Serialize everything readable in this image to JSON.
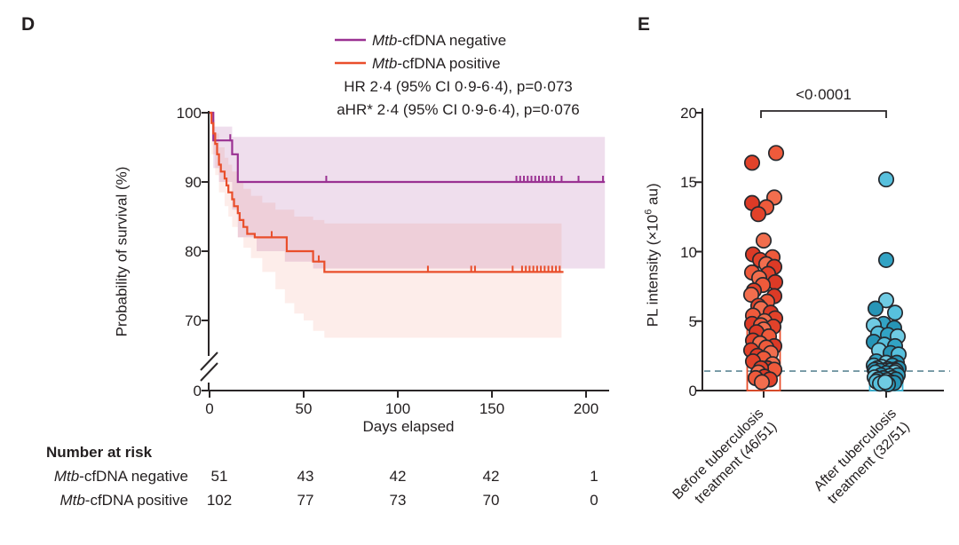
{
  "figure": {
    "panel_d_label": "D",
    "panel_e_label": "E"
  },
  "chart_data": [
    {
      "type": "line",
      "subtype": "kaplan_meier_survival",
      "panel": "D",
      "xlabel": "Days elapsed",
      "ylabel": "Probability of survival (%)",
      "xticks": [
        "0",
        "50",
        "100",
        "150",
        "200"
      ],
      "yticks": [
        "100",
        "90",
        "80",
        "70"
      ],
      "y_axis_break_label": "0",
      "xlim": [
        0,
        210
      ],
      "ylim_display": [
        65,
        100
      ],
      "grid": false,
      "legend_position": "top-center",
      "stats": {
        "line1": "HR 2·4 (95% CI 0·9-6·4), p=0·073",
        "line2": "aHR* 2·4 (95% CI 0·9-6·4), p=0·076"
      },
      "series": [
        {
          "name_italic": "Mtb",
          "name_rest": "-cfDNA negative",
          "color": "#9A3192",
          "band_color": "rgba(154,49,144,0.16)",
          "steps": [
            [
              0,
              100
            ],
            [
              2,
              96
            ],
            [
              12,
              94
            ],
            [
              15,
              90
            ],
            [
              210,
              90
            ]
          ],
          "censors": [
            [
              11,
              96
            ],
            [
              62,
              90
            ],
            [
              163,
              90
            ],
            [
              165,
              90
            ],
            [
              167,
              90
            ],
            [
              169,
              90
            ],
            [
              171,
              90
            ],
            [
              173,
              90
            ],
            [
              175,
              90
            ],
            [
              177,
              90
            ],
            [
              179,
              90
            ],
            [
              181,
              90
            ],
            [
              183,
              90
            ],
            [
              187,
              90
            ],
            [
              196,
              90
            ],
            [
              209,
              90
            ]
          ],
          "ci_upper": [
            [
              2,
              98
            ],
            [
              12,
              96.5
            ],
            [
              210,
              96.5
            ]
          ],
          "ci_lower": [
            [
              2,
              92
            ],
            [
              5,
              90
            ],
            [
              12,
              86
            ],
            [
              15,
              82
            ],
            [
              25,
              80
            ],
            [
              40,
              78.5
            ],
            [
              55,
              77.5
            ],
            [
              210,
              77.5
            ]
          ]
        },
        {
          "name_italic": "Mtb",
          "name_rest": "-cfDNA positive",
          "color": "#E94E2B",
          "band_color": "rgba(233,80,45,0.10)",
          "steps": [
            [
              0,
              100
            ],
            [
              1,
              98.5
            ],
            [
              2,
              97
            ],
            [
              3,
              95.5
            ],
            [
              4,
              94
            ],
            [
              5,
              92.5
            ],
            [
              6,
              91.5
            ],
            [
              8,
              90.5
            ],
            [
              9,
              89.5
            ],
            [
              10,
              88.5
            ],
            [
              12,
              87.5
            ],
            [
              13,
              86.5
            ],
            [
              15,
              85.5
            ],
            [
              16,
              84.5
            ],
            [
              18,
              83.5
            ],
            [
              20,
              82.5
            ],
            [
              24,
              82
            ],
            [
              41,
              80
            ],
            [
              55,
              78.5
            ],
            [
              61,
              77
            ],
            [
              188,
              77
            ]
          ],
          "censors": [
            [
              33,
              82
            ],
            [
              58,
              78.5
            ],
            [
              116,
              77
            ],
            [
              139,
              77
            ],
            [
              141,
              77
            ],
            [
              161,
              77
            ],
            [
              166,
              77
            ],
            [
              168,
              77
            ],
            [
              170,
              77
            ],
            [
              172,
              77
            ],
            [
              174,
              77
            ],
            [
              176,
              77
            ],
            [
              178,
              77
            ],
            [
              180,
              77
            ],
            [
              182,
              77
            ],
            [
              184,
              77
            ],
            [
              186,
              77
            ]
          ],
          "ci_upper": [
            [
              1,
              99
            ],
            [
              3,
              97
            ],
            [
              5,
              95
            ],
            [
              8,
              93.5
            ],
            [
              10,
              92.5
            ],
            [
              12,
              91.5
            ],
            [
              15,
              90
            ],
            [
              18,
              89
            ],
            [
              22,
              88
            ],
            [
              28,
              87
            ],
            [
              35,
              86
            ],
            [
              45,
              85
            ],
            [
              55,
              84.5
            ],
            [
              61,
              84
            ],
            [
              187,
              84
            ]
          ],
          "ci_lower": [
            [
              1,
              94
            ],
            [
              3,
              91
            ],
            [
              5,
              88.5
            ],
            [
              8,
              86.5
            ],
            [
              10,
              85
            ],
            [
              12,
              83.5
            ],
            [
              15,
              82
            ],
            [
              18,
              80.5
            ],
            [
              22,
              79
            ],
            [
              28,
              77
            ],
            [
              35,
              74.5
            ],
            [
              40,
              72.5
            ],
            [
              45,
              71
            ],
            [
              50,
              70
            ],
            [
              55,
              68.5
            ],
            [
              61,
              67.5
            ],
            [
              187,
              67.5
            ]
          ]
        }
      ],
      "number_at_risk": {
        "header": "Number at risk",
        "rows": [
          {
            "label_italic": "Mtb",
            "label_rest": "-cfDNA negative",
            "values": [
              "51",
              "43",
              "42",
              "42",
              "1"
            ]
          },
          {
            "label_italic": "Mtb",
            "label_rest": "-cfDNA positive",
            "values": [
              "102",
              "77",
              "73",
              "70",
              "0"
            ]
          }
        ]
      }
    },
    {
      "type": "scatter",
      "subtype": "strip_plot",
      "panel": "E",
      "ylabel": {
        "prefix": "PL intensity (×10",
        "sup": "6",
        "suffix": " au)"
      },
      "yticks": [
        "20",
        "15",
        "10",
        "5",
        "0"
      ],
      "ylim": [
        0,
        20
      ],
      "grid": false,
      "pvalue": "<0·0001",
      "threshold": 1.4,
      "threshold_color": "#5D8795",
      "groups": [
        {
          "label_line1": "Before tuberculosis",
          "label_line2": "treatment (46/51)",
          "bar_top": 4.75,
          "bar_color": "#E94E2B",
          "dot_colors": [
            "#EF5A3B",
            "#E2422A",
            "#F26E4E",
            "#DC3A26"
          ],
          "points": [
            [
              14,
              17.1
            ],
            [
              -13,
              16.4
            ],
            [
              12,
              13.9
            ],
            [
              -13,
              13.5
            ],
            [
              3,
              13.2
            ],
            [
              -6,
              12.7
            ],
            [
              0,
              10.8
            ],
            [
              -12,
              9.8
            ],
            [
              10,
              9.6
            ],
            [
              -4,
              9.4
            ],
            [
              3,
              9.1
            ],
            [
              12,
              8.9
            ],
            [
              -13,
              8.5
            ],
            [
              5,
              8.4
            ],
            [
              -5,
              8.1
            ],
            [
              13,
              7.8
            ],
            [
              -1,
              7.6
            ],
            [
              -11,
              7.2
            ],
            [
              -14,
              6.9
            ],
            [
              12,
              6.8
            ],
            [
              4,
              6.4
            ],
            [
              -6,
              6.1
            ],
            [
              -3,
              5.9
            ],
            [
              8,
              5.6
            ],
            [
              -12,
              5.4
            ],
            [
              13,
              5.2
            ],
            [
              1,
              5.0
            ],
            [
              -13,
              4.8
            ],
            [
              -3,
              4.7
            ],
            [
              11,
              4.6
            ],
            [
              0,
              4.4
            ],
            [
              -8,
              4.2
            ],
            [
              6,
              3.9
            ],
            [
              -12,
              3.6
            ],
            [
              -4,
              3.4
            ],
            [
              12,
              3.2
            ],
            [
              3,
              3.1
            ],
            [
              -14,
              2.9
            ],
            [
              8,
              2.7
            ],
            [
              -7,
              2.5
            ],
            [
              0,
              2.3
            ],
            [
              -12,
              2.1
            ],
            [
              10,
              1.9
            ],
            [
              4,
              1.6
            ],
            [
              12,
              1.5
            ],
            [
              -3,
              1.6
            ],
            [
              -6,
              1.3
            ],
            [
              1,
              1.0
            ],
            [
              -9,
              0.9
            ],
            [
              7,
              0.8
            ],
            [
              -2,
              0.6
            ]
          ]
        },
        {
          "label_line1": "After tuberculosis",
          "label_line2": "treatment (32/51)",
          "bar_top": 1.5,
          "bar_color": "#3DB9DA",
          "dot_colors": [
            "#57C0DD",
            "#32A3C4",
            "#6FCBE3",
            "#2795B7"
          ],
          "points": [
            [
              0,
              15.2
            ],
            [
              0,
              9.4
            ],
            [
              0,
              6.5
            ],
            [
              -12,
              5.9
            ],
            [
              10,
              5.6
            ],
            [
              -3,
              4.8
            ],
            [
              -14,
              4.7
            ],
            [
              9,
              4.5
            ],
            [
              -9,
              4.1
            ],
            [
              2,
              4.0
            ],
            [
              13,
              3.9
            ],
            [
              -14,
              3.5
            ],
            [
              -2,
              3.3
            ],
            [
              10,
              3.2
            ],
            [
              -8,
              2.9
            ],
            [
              5,
              2.7
            ],
            [
              14,
              2.6
            ],
            [
              -11,
              2.1
            ],
            [
              0,
              2.0
            ],
            [
              12,
              2.0
            ],
            [
              -14,
              1.8
            ],
            [
              7,
              1.8
            ],
            [
              -5,
              1.7
            ],
            [
              14,
              1.6
            ],
            [
              -10,
              1.6
            ],
            [
              2,
              1.55
            ],
            [
              9,
              1.5
            ],
            [
              -13,
              1.5
            ],
            [
              -2,
              1.45
            ],
            [
              5,
              1.45
            ],
            [
              11,
              1.42
            ],
            [
              -7,
              1.42
            ],
            [
              -12,
              1.3
            ],
            [
              0,
              1.25
            ],
            [
              10,
              1.3
            ],
            [
              -6,
              1.1
            ],
            [
              4,
              1.05
            ],
            [
              13,
              1.1
            ],
            [
              -13,
              0.95
            ],
            [
              -3,
              0.9
            ],
            [
              7,
              0.9
            ],
            [
              -9,
              0.8
            ],
            [
              1,
              0.75
            ],
            [
              11,
              0.8
            ],
            [
              -11,
              0.65
            ],
            [
              5,
              0.6
            ],
            [
              -4,
              0.55
            ],
            [
              9,
              0.55
            ],
            [
              -7,
              0.5
            ],
            [
              2,
              0.45
            ],
            [
              -1,
              0.6
            ]
          ]
        }
      ]
    }
  ]
}
